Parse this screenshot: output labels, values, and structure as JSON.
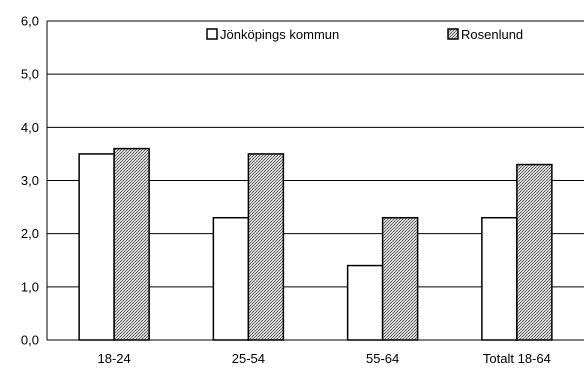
{
  "chart_data": {
    "type": "bar",
    "categories": [
      "18-24",
      "25-54",
      "55-64",
      "Totalt 18-64"
    ],
    "series": [
      {
        "name": "Jönköpings kommun",
        "values": [
          3.5,
          2.3,
          1.4,
          2.3
        ],
        "fill": "#ffffff"
      },
      {
        "name": "Rosenlund",
        "values": [
          3.6,
          3.5,
          2.3,
          3.3
        ],
        "fill": "#a6a6a6",
        "pattern": "crosshatch"
      }
    ],
    "y_ticks": [
      "0,0",
      "1,0",
      "2,0",
      "3,0",
      "4,0",
      "5,0",
      "6,0"
    ],
    "ylim": [
      0,
      6
    ],
    "grid": true,
    "legend_position": "top-right"
  }
}
